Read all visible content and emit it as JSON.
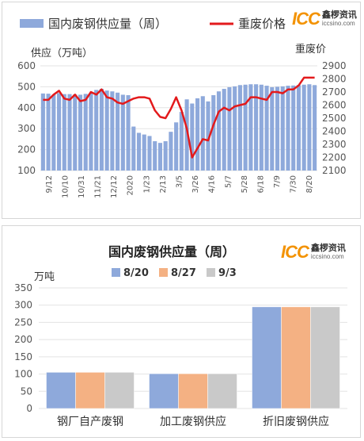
{
  "logo": {
    "mark": "ICC",
    "cn": "鑫椤资讯",
    "en": "iccsino.com"
  },
  "chart_data": [
    {
      "type": "bar+line",
      "legend": {
        "bar": "国内废钢供应量（周）",
        "line": "重废价格"
      },
      "ylabel_left": "供应（万吨）",
      "ylabel_right": "重废价",
      "ylim_left": [
        100,
        600
      ],
      "ylim_right": [
        2100,
        2900
      ],
      "yticks_left": [
        100,
        200,
        300,
        400,
        500,
        600
      ],
      "yticks_right": [
        2100,
        2200,
        2300,
        2400,
        2500,
        2600,
        2700,
        2800,
        2900
      ],
      "xtick_labels": [
        "9/12",
        "10/10",
        "10/31",
        "11/21",
        "12/12",
        "2020",
        "1/23",
        "2/13",
        "3/5",
        "3/26",
        "4/16",
        "5/7",
        "5/28",
        "6/18",
        "7/9",
        "7/30",
        "8/20"
      ],
      "series": [
        {
          "name": "国内废钢供应量（周）",
          "values": [
            468,
            467,
            462,
            470,
            465,
            465,
            463,
            462,
            466,
            470,
            485,
            490,
            482,
            478,
            472,
            462,
            460,
            310,
            280,
            272,
            265,
            240,
            232,
            240,
            285,
            330,
            380,
            440,
            420,
            445,
            455,
            430,
            460,
            478,
            490,
            498,
            502,
            508,
            510,
            512,
            512,
            510,
            505,
            498,
            500,
            502,
            505,
            506,
            508,
            510,
            512,
            508
          ]
        },
        {
          "name": "重废价格",
          "values": [
            2640,
            2640,
            2680,
            2710,
            2650,
            2640,
            2680,
            2630,
            2640,
            2700,
            2680,
            2720,
            2660,
            2650,
            2620,
            2610,
            2630,
            2650,
            2660,
            2660,
            2650,
            2560,
            2510,
            2500,
            2570,
            2660,
            2560,
            2420,
            2200,
            2270,
            2340,
            2330,
            2450,
            2550,
            2580,
            2560,
            2590,
            2600,
            2610,
            2660,
            2660,
            2650,
            2640,
            2700,
            2700,
            2690,
            2720,
            2720,
            2750,
            2810,
            2810,
            2810
          ]
        }
      ]
    },
    {
      "type": "bar",
      "title": "国内废钢供应量（周）",
      "ylabel": "万吨",
      "ylim": [
        0,
        350
      ],
      "yticks": [
        0,
        50,
        100,
        150,
        200,
        250,
        300,
        350
      ],
      "categories": [
        "钢厂自产废钢",
        "加工废钢供应",
        "折旧废钢供应"
      ],
      "series": [
        {
          "name": "8/20",
          "color": "#8ea9db",
          "values": [
            105,
            101,
            295
          ]
        },
        {
          "name": "8/27",
          "color": "#f4b183",
          "values": [
            105,
            101,
            295
          ]
        },
        {
          "name": "9/3",
          "color": "#c9c9c9",
          "values": [
            105,
            101,
            295
          ]
        }
      ]
    }
  ]
}
